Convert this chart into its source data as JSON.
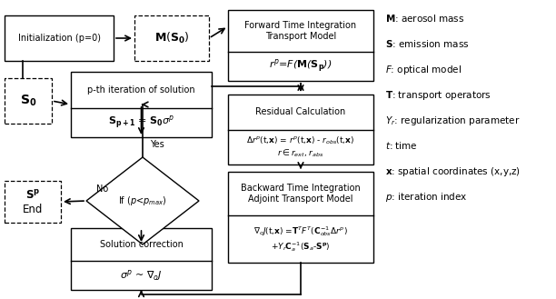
{
  "bg_color": "#ffffff",
  "legend_items": [
    [
      "$\\mathbf{M}$: aerosol mass",
      false
    ],
    [
      "$\\mathbf{S}$: emission mass",
      false
    ],
    [
      "$\\mathit{F}$: optical model",
      false
    ],
    [
      "$\\mathbf{T}$: transport operators",
      false
    ],
    [
      "$Y_r$: regularization parameter",
      false
    ],
    [
      "$\\mathit{t}$: time",
      false
    ],
    [
      "$\\mathbf{x}$: spatial coordinates (x,y,z)",
      false
    ],
    [
      "$\\mathit{p}$: iteration index",
      false
    ]
  ]
}
